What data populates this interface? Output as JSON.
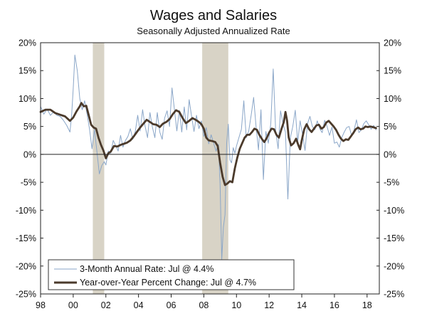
{
  "chart_data": {
    "type": "line",
    "title": "Wages and Salaries",
    "subtitle": "Seasonally Adjusted Annualized Rate",
    "x_range": [
      1998.0,
      2018.75
    ],
    "ylim": [
      -25,
      20
    ],
    "y_tick_values": [
      20,
      15,
      10,
      5,
      0,
      -5,
      -10,
      -15,
      -20,
      -25
    ],
    "y_tick_labels": [
      "20%",
      "15%",
      "10%",
      "5%",
      "0%",
      "-5%",
      "-10%",
      "-15%",
      "-20%",
      "-25%"
    ],
    "x_tick_values": [
      1998,
      2000,
      2002,
      2004,
      2006,
      2008,
      2010,
      2012,
      2014,
      2016,
      2018
    ],
    "x_tick_labels": [
      "98",
      "00",
      "02",
      "04",
      "06",
      "08",
      "10",
      "12",
      "14",
      "16",
      "18"
    ],
    "grid": false,
    "legend_position": "bottom-left",
    "shaded_periods": [
      {
        "start": 2001.2,
        "end": 2001.9
      },
      {
        "start": 2007.9,
        "end": 2009.5
      }
    ],
    "series": [
      {
        "name": "3-Month Annual Rate: Jul @ 4.4%",
        "style": "thin",
        "color": "#8aa6c8",
        "points": [
          [
            1998.0,
            8.6
          ],
          [
            1998.2,
            7.2
          ],
          [
            1998.4,
            8.1
          ],
          [
            1998.6,
            7.0
          ],
          [
            1998.8,
            7.6
          ],
          [
            1999.0,
            7.0
          ],
          [
            1999.2,
            6.8
          ],
          [
            1999.4,
            6.1
          ],
          [
            1999.6,
            5.2
          ],
          [
            1999.8,
            4.0
          ],
          [
            1999.9,
            6.9
          ],
          [
            2000.0,
            11.8
          ],
          [
            2000.1,
            17.8
          ],
          [
            2000.25,
            15.0
          ],
          [
            2000.4,
            10.0
          ],
          [
            2000.55,
            8.0
          ],
          [
            2000.7,
            9.6
          ],
          [
            2000.85,
            7.2
          ],
          [
            2001.0,
            4.5
          ],
          [
            2001.15,
            1.0
          ],
          [
            2001.3,
            4.5
          ],
          [
            2001.45,
            0.6
          ],
          [
            2001.6,
            -3.5
          ],
          [
            2001.75,
            -2.0
          ],
          [
            2001.9,
            -1.3
          ],
          [
            2002.0,
            -1.9
          ],
          [
            2002.15,
            0.6
          ],
          [
            2002.3,
            0.2
          ],
          [
            2002.45,
            2.5
          ],
          [
            2002.6,
            1.6
          ],
          [
            2002.75,
            0.6
          ],
          [
            2002.9,
            3.4
          ],
          [
            2003.05,
            1.3
          ],
          [
            2003.2,
            2.5
          ],
          [
            2003.35,
            3.2
          ],
          [
            2003.5,
            4.6
          ],
          [
            2003.65,
            2.7
          ],
          [
            2003.8,
            4.1
          ],
          [
            2003.95,
            7.0
          ],
          [
            2004.1,
            4.2
          ],
          [
            2004.25,
            8.0
          ],
          [
            2004.4,
            5.1
          ],
          [
            2004.55,
            3.0
          ],
          [
            2004.7,
            7.5
          ],
          [
            2004.85,
            4.9
          ],
          [
            2005.0,
            3.0
          ],
          [
            2005.15,
            7.5
          ],
          [
            2005.3,
            4.0
          ],
          [
            2005.45,
            2.7
          ],
          [
            2005.6,
            6.5
          ],
          [
            2005.75,
            7.8
          ],
          [
            2005.9,
            5.0
          ],
          [
            2006.05,
            11.9
          ],
          [
            2006.2,
            8.0
          ],
          [
            2006.35,
            4.2
          ],
          [
            2006.5,
            7.9
          ],
          [
            2006.65,
            4.0
          ],
          [
            2006.8,
            8.5
          ],
          [
            2006.95,
            4.4
          ],
          [
            2007.1,
            9.8
          ],
          [
            2007.25,
            6.8
          ],
          [
            2007.4,
            4.1
          ],
          [
            2007.55,
            7.0
          ],
          [
            2007.7,
            4.6
          ],
          [
            2007.85,
            6.0
          ],
          [
            2008.0,
            3.2
          ],
          [
            2008.15,
            4.8
          ],
          [
            2008.3,
            1.9
          ],
          [
            2008.45,
            3.5
          ],
          [
            2008.6,
            2.0
          ],
          [
            2008.75,
            0.6
          ],
          [
            2008.9,
            1.8
          ],
          [
            2009.0,
            -5.5
          ],
          [
            2009.1,
            -18.8
          ],
          [
            2009.2,
            -13.0
          ],
          [
            2009.3,
            -10.8
          ],
          [
            2009.4,
            2.0
          ],
          [
            2009.5,
            5.4
          ],
          [
            2009.6,
            -1.0
          ],
          [
            2009.7,
            -1.5
          ],
          [
            2009.8,
            1.2
          ],
          [
            2009.9,
            0.2
          ],
          [
            2010.0,
            1.5
          ],
          [
            2010.15,
            3.0
          ],
          [
            2010.3,
            4.5
          ],
          [
            2010.45,
            9.6
          ],
          [
            2010.6,
            3.0
          ],
          [
            2010.75,
            4.2
          ],
          [
            2010.9,
            7.0
          ],
          [
            2011.05,
            10.2
          ],
          [
            2011.2,
            5.0
          ],
          [
            2011.35,
            0.8
          ],
          [
            2011.5,
            8.0
          ],
          [
            2011.65,
            -4.5
          ],
          [
            2011.8,
            4.1
          ],
          [
            2011.95,
            2.0
          ],
          [
            2012.1,
            5.5
          ],
          [
            2012.25,
            15.3
          ],
          [
            2012.4,
            4.3
          ],
          [
            2012.55,
            1.0
          ],
          [
            2012.7,
            7.8
          ],
          [
            2012.85,
            5.5
          ],
          [
            2013.0,
            4.0
          ],
          [
            2013.15,
            -8.0
          ],
          [
            2013.3,
            3.0
          ],
          [
            2013.45,
            5.0
          ],
          [
            2013.6,
            7.9
          ],
          [
            2013.75,
            2.2
          ],
          [
            2013.9,
            6.0
          ],
          [
            2014.05,
            3.5
          ],
          [
            2014.2,
            0.7
          ],
          [
            2014.35,
            5.5
          ],
          [
            2014.5,
            6.8
          ],
          [
            2014.65,
            5.0
          ],
          [
            2014.8,
            4.4
          ],
          [
            2014.95,
            6.0
          ],
          [
            2015.1,
            4.6
          ],
          [
            2015.25,
            3.9
          ],
          [
            2015.4,
            6.1
          ],
          [
            2015.55,
            5.0
          ],
          [
            2015.7,
            3.4
          ],
          [
            2015.85,
            4.9
          ],
          [
            2016.0,
            2.0
          ],
          [
            2016.15,
            2.2
          ],
          [
            2016.3,
            1.3
          ],
          [
            2016.45,
            3.0
          ],
          [
            2016.6,
            4.0
          ],
          [
            2016.75,
            4.8
          ],
          [
            2016.9,
            5.0
          ],
          [
            2017.05,
            3.4
          ],
          [
            2017.2,
            4.3
          ],
          [
            2017.35,
            6.2
          ],
          [
            2017.5,
            3.9
          ],
          [
            2017.65,
            4.4
          ],
          [
            2017.8,
            5.5
          ],
          [
            2017.95,
            6.0
          ],
          [
            2018.1,
            5.3
          ],
          [
            2018.25,
            4.5
          ],
          [
            2018.4,
            5.2
          ],
          [
            2018.55,
            4.4
          ]
        ]
      },
      {
        "name": "Year-over-Year Percent Change: Jul @ 4.7%",
        "style": "thick",
        "color": "#4b3a2b",
        "points": [
          [
            1998.0,
            7.6
          ],
          [
            1998.3,
            8.0
          ],
          [
            1998.6,
            8.0
          ],
          [
            1998.9,
            7.4
          ],
          [
            1999.2,
            7.1
          ],
          [
            1999.5,
            6.8
          ],
          [
            1999.8,
            6.0
          ],
          [
            2000.0,
            6.6
          ],
          [
            2000.2,
            7.7
          ],
          [
            2000.4,
            8.6
          ],
          [
            2000.5,
            9.2
          ],
          [
            2000.65,
            8.6
          ],
          [
            2000.8,
            8.7
          ],
          [
            2000.95,
            7.0
          ],
          [
            2001.1,
            5.3
          ],
          [
            2001.25,
            4.8
          ],
          [
            2001.4,
            4.6
          ],
          [
            2001.55,
            3.0
          ],
          [
            2001.7,
            1.7
          ],
          [
            2001.85,
            0.7
          ],
          [
            2002.0,
            -0.7
          ],
          [
            2002.15,
            0.2
          ],
          [
            2002.3,
            0.5
          ],
          [
            2002.5,
            1.5
          ],
          [
            2002.7,
            1.4
          ],
          [
            2002.9,
            1.7
          ],
          [
            2003.1,
            1.9
          ],
          [
            2003.3,
            2.1
          ],
          [
            2003.5,
            2.5
          ],
          [
            2003.7,
            3.2
          ],
          [
            2003.9,
            4.0
          ],
          [
            2004.1,
            4.8
          ],
          [
            2004.3,
            5.5
          ],
          [
            2004.5,
            6.2
          ],
          [
            2004.7,
            5.8
          ],
          [
            2004.9,
            5.4
          ],
          [
            2005.1,
            5.3
          ],
          [
            2005.3,
            4.9
          ],
          [
            2005.5,
            5.5
          ],
          [
            2005.7,
            5.8
          ],
          [
            2005.9,
            6.3
          ],
          [
            2006.1,
            7.2
          ],
          [
            2006.3,
            7.9
          ],
          [
            2006.5,
            7.6
          ],
          [
            2006.7,
            6.5
          ],
          [
            2006.9,
            5.6
          ],
          [
            2007.1,
            6.0
          ],
          [
            2007.3,
            6.5
          ],
          [
            2007.5,
            6.2
          ],
          [
            2007.7,
            5.8
          ],
          [
            2007.85,
            5.4
          ],
          [
            2008.0,
            4.6
          ],
          [
            2008.15,
            3.0
          ],
          [
            2008.3,
            2.5
          ],
          [
            2008.5,
            2.4
          ],
          [
            2008.7,
            2.2
          ],
          [
            2008.85,
            1.5
          ],
          [
            2009.0,
            -1.5
          ],
          [
            2009.15,
            -4.0
          ],
          [
            2009.3,
            -5.5
          ],
          [
            2009.45,
            -5.2
          ],
          [
            2009.6,
            -4.8
          ],
          [
            2009.75,
            -5.0
          ],
          [
            2009.9,
            -2.5
          ],
          [
            2010.05,
            -0.6
          ],
          [
            2010.2,
            1.0
          ],
          [
            2010.35,
            2.0
          ],
          [
            2010.5,
            3.0
          ],
          [
            2010.65,
            3.5
          ],
          [
            2010.8,
            3.5
          ],
          [
            2010.95,
            4.0
          ],
          [
            2011.1,
            4.6
          ],
          [
            2011.25,
            4.4
          ],
          [
            2011.4,
            3.5
          ],
          [
            2011.55,
            2.8
          ],
          [
            2011.7,
            2.2
          ],
          [
            2011.85,
            2.9
          ],
          [
            2012.0,
            3.9
          ],
          [
            2012.15,
            4.6
          ],
          [
            2012.3,
            4.5
          ],
          [
            2012.45,
            3.5
          ],
          [
            2012.6,
            3.0
          ],
          [
            2012.75,
            4.5
          ],
          [
            2012.9,
            5.8
          ],
          [
            2013.0,
            7.6
          ],
          [
            2013.1,
            6.0
          ],
          [
            2013.2,
            3.0
          ],
          [
            2013.35,
            1.6
          ],
          [
            2013.5,
            2.0
          ],
          [
            2013.65,
            2.8
          ],
          [
            2013.8,
            1.6
          ],
          [
            2013.9,
            0.9
          ],
          [
            2014.0,
            2.5
          ],
          [
            2014.15,
            4.5
          ],
          [
            2014.3,
            5.4
          ],
          [
            2014.45,
            4.5
          ],
          [
            2014.6,
            4.0
          ],
          [
            2014.75,
            4.6
          ],
          [
            2014.9,
            5.2
          ],
          [
            2015.05,
            5.3
          ],
          [
            2015.2,
            4.6
          ],
          [
            2015.35,
            4.9
          ],
          [
            2015.5,
            5.7
          ],
          [
            2015.65,
            6.0
          ],
          [
            2015.8,
            5.5
          ],
          [
            2015.95,
            5.0
          ],
          [
            2016.1,
            4.4
          ],
          [
            2016.25,
            3.5
          ],
          [
            2016.4,
            2.8
          ],
          [
            2016.55,
            2.4
          ],
          [
            2016.7,
            2.7
          ],
          [
            2016.85,
            2.6
          ],
          [
            2017.0,
            3.2
          ],
          [
            2017.15,
            3.8
          ],
          [
            2017.3,
            4.5
          ],
          [
            2017.45,
            4.8
          ],
          [
            2017.6,
            4.5
          ],
          [
            2017.75,
            4.6
          ],
          [
            2017.9,
            5.0
          ],
          [
            2018.05,
            4.9
          ],
          [
            2018.2,
            5.0
          ],
          [
            2018.35,
            4.9
          ],
          [
            2018.55,
            4.7
          ]
        ]
      }
    ]
  }
}
